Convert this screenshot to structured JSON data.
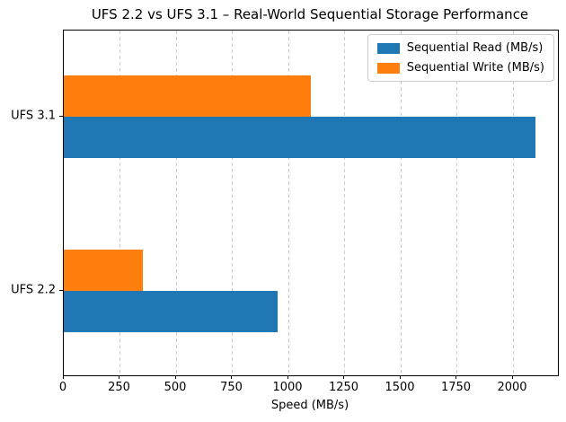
{
  "chart_data": {
    "type": "bar",
    "orientation": "horizontal",
    "title": "UFS 2.2 vs UFS 3.1 – Real-World Sequential Storage Performance",
    "xlabel": "Speed (MB/s)",
    "categories": [
      "UFS 2.2",
      "UFS 3.1"
    ],
    "series": [
      {
        "name": "Sequential Read (MB/s)",
        "color": "#1f77b4",
        "values": [
          950,
          2100
        ]
      },
      {
        "name": "Sequential Write (MB/s)",
        "color": "#ff7f0e",
        "values": [
          350,
          1100
        ]
      }
    ],
    "xlim": [
      0,
      2200
    ],
    "ylim": [
      -0.48,
      1.49
    ],
    "xticks": [
      0,
      250,
      500,
      750,
      1000,
      1250,
      1500,
      1750,
      2000
    ],
    "grid": {
      "axis": "x",
      "style": "dashed",
      "color": "#cccccc"
    },
    "legend_position": "upper-right"
  },
  "colors": {
    "spine": "#000000",
    "text": "#000000",
    "background": "#ffffff"
  }
}
